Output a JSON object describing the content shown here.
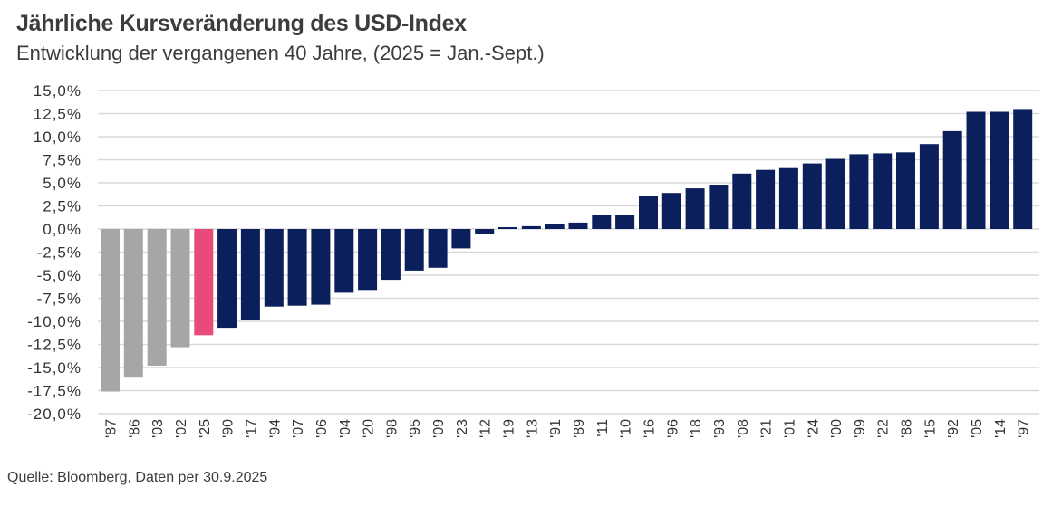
{
  "header": {
    "title": "Jährliche Kursveränderung des USD-Index",
    "subtitle": "Entwicklung der vergangenen 40 Jahre, (2025 = Jan.-Sept.)"
  },
  "footer": {
    "source": "Quelle: Bloomberg, Daten per 30.9.2025"
  },
  "colors": {
    "highlight": "#E84A7A",
    "negative_worst": "#A6A6A6",
    "default": "#0B1F5C",
    "grid": "#D9D9D9"
  },
  "chart_data": {
    "type": "bar",
    "title": "Jährliche Kursveränderung des USD-Index",
    "subtitle": "Entwicklung der vergangenen 40 Jahre, (2025 = Jan.-Sept.)",
    "xlabel": "",
    "ylabel": "",
    "ylim": [
      -20,
      15
    ],
    "yticks": [
      15,
      12.5,
      10,
      7.5,
      5,
      2.5,
      0,
      -2.5,
      -5,
      -7.5,
      -10,
      -12.5,
      -15,
      -17.5,
      -20
    ],
    "ytick_labels": [
      "15,0%",
      "12,5%",
      "10,0%",
      "7,5%",
      "5,0%",
      "2,5%",
      "0,0%",
      "-2,5%",
      "-5,0%",
      "-7,5%",
      "-10,0%",
      "-12,5%",
      "-15,0%",
      "-17,5%",
      "-20,0%"
    ],
    "grid": true,
    "legend": "none",
    "categories": [
      "'87",
      "'86",
      "'03",
      "'02",
      "'25",
      "'90",
      "'17",
      "'94",
      "'07",
      "'06",
      "'04",
      "'20",
      "'98",
      "'95",
      "'09",
      "'23",
      "'12",
      "'19",
      "'13",
      "'91",
      "'89",
      "'11",
      "'10",
      "'16",
      "'96",
      "'18",
      "'93",
      "'08",
      "'21",
      "'01",
      "'24",
      "'00",
      "'99",
      "'22",
      "'88",
      "'15",
      "'92",
      "'05",
      "'14",
      "'97"
    ],
    "values": [
      -17.6,
      -16.1,
      -14.8,
      -12.8,
      -11.5,
      -10.7,
      -9.9,
      -8.4,
      -8.3,
      -8.2,
      -6.9,
      -6.6,
      -5.5,
      -4.5,
      -4.2,
      -2.1,
      -0.5,
      0.2,
      0.3,
      0.5,
      0.7,
      1.5,
      1.5,
      3.6,
      3.9,
      4.4,
      4.8,
      6.0,
      6.4,
      6.6,
      7.1,
      7.6,
      8.1,
      8.2,
      8.3,
      9.2,
      10.6,
      12.7,
      12.7,
      13.0
    ],
    "bar_colors": [
      "gray",
      "gray",
      "gray",
      "gray",
      "pink",
      "navy",
      "navy",
      "navy",
      "navy",
      "navy",
      "navy",
      "navy",
      "navy",
      "navy",
      "navy",
      "navy",
      "navy",
      "navy",
      "navy",
      "navy",
      "navy",
      "navy",
      "navy",
      "navy",
      "navy",
      "navy",
      "navy",
      "navy",
      "navy",
      "navy",
      "navy",
      "navy",
      "navy",
      "navy",
      "navy",
      "navy",
      "navy",
      "navy",
      "navy",
      "navy"
    ],
    "unit": "%"
  }
}
